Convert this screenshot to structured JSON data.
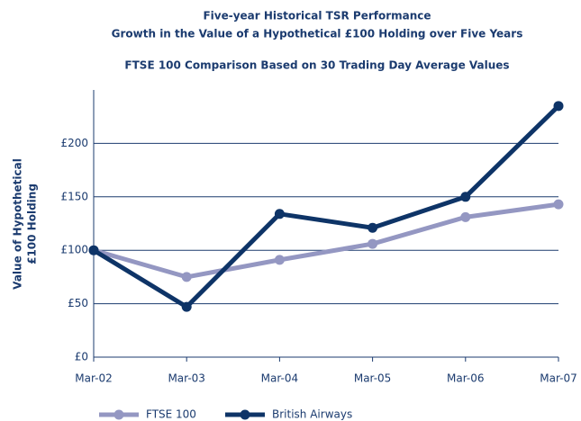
{
  "chart_data": {
    "type": "line",
    "title": [
      "Five-year Historical TSR Performance",
      "Growth in the Value of a Hypothetical £100 Holding over Five Years"
    ],
    "subtitle": "FTSE 100 Comparison Based on 30 Trading Day Average Values",
    "ylabel": [
      "Value of Hypothetical",
      "£100 Holding"
    ],
    "categories": [
      "Mar-02",
      "Mar-03",
      "Mar-04",
      "Mar-05",
      "Mar-06",
      "Mar-07"
    ],
    "series": [
      {
        "name": "FTSE 100",
        "color": "#9497c2",
        "values": [
          100,
          75,
          91,
          106,
          131,
          143
        ]
      },
      {
        "name": "British Airways",
        "color": "#0e3467",
        "values": [
          100,
          47,
          134,
          121,
          150,
          235
        ]
      }
    ],
    "ylim": [
      0,
      250
    ],
    "yticks": [
      {
        "value": 0,
        "label": "£0"
      },
      {
        "value": 50,
        "label": "£50"
      },
      {
        "value": 100,
        "label": "£100"
      },
      {
        "value": 150,
        "label": "£150"
      },
      {
        "value": 200,
        "label": "£200"
      }
    ],
    "grid": true
  }
}
